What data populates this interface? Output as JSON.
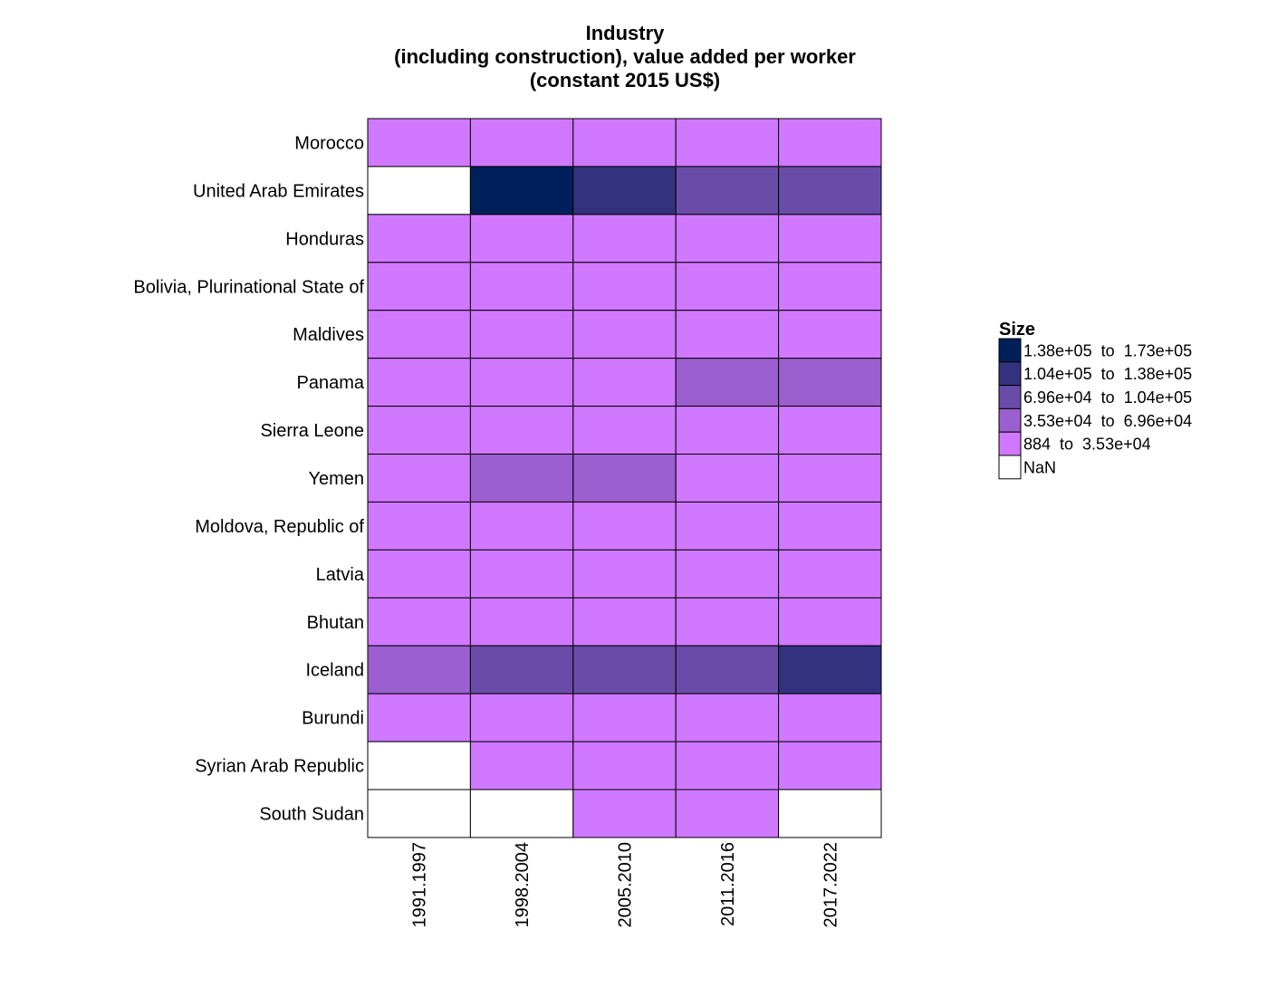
{
  "chart_data": {
    "type": "heatmap",
    "title_lines": [
      "Industry",
      "(including construction), value added per worker",
      "(constant 2015 US$)"
    ],
    "xlabel": "",
    "ylabel": "",
    "columns": [
      "1991.1997",
      "1998.2004",
      "2005.2010",
      "2011.2016",
      "2017.2022"
    ],
    "rows": [
      "Morocco",
      "United Arab Emirates",
      "Honduras",
      "Bolivia, Plurinational State of",
      "Maldives",
      "Panama",
      "Sierra Leone",
      "Yemen",
      "Moldova, Republic of",
      "Latvia",
      "Bhutan",
      "Iceland",
      "Burundi",
      "Syrian Arab Republic",
      "South Sudan"
    ],
    "cells": [
      [
        0,
        0,
        0,
        0,
        0
      ],
      [
        null,
        4,
        3,
        2,
        2
      ],
      [
        0,
        0,
        0,
        0,
        0
      ],
      [
        0,
        0,
        0,
        0,
        0
      ],
      [
        0,
        0,
        0,
        0,
        0
      ],
      [
        0,
        0,
        0,
        1,
        1
      ],
      [
        0,
        0,
        0,
        0,
        0
      ],
      [
        0,
        1,
        1,
        0,
        0
      ],
      [
        0,
        0,
        0,
        0,
        0
      ],
      [
        0,
        0,
        0,
        0,
        0
      ],
      [
        0,
        0,
        0,
        0,
        0
      ],
      [
        1,
        2,
        2,
        2,
        3
      ],
      [
        0,
        0,
        0,
        0,
        0
      ],
      [
        null,
        0,
        0,
        0,
        0
      ],
      [
        null,
        null,
        0,
        0,
        null
      ]
    ],
    "legend": {
      "title": "Size",
      "position": "right",
      "bins": [
        {
          "label": "1.38e+05  to  1.73e+05",
          "color": "#00205b"
        },
        {
          "label": "1.04e+05  to  1.38e+05",
          "color": "#32327f"
        },
        {
          "label": "6.96e+04  to  1.04e+05",
          "color": "#694ca7"
        },
        {
          "label": "3.53e+04  to  6.96e+04",
          "color": "#9b5fd0"
        },
        {
          "label": "884  to  3.53e+04",
          "color": "#d078ff"
        }
      ],
      "nan_label": "NaN",
      "nan_color": "#ffffff"
    }
  }
}
